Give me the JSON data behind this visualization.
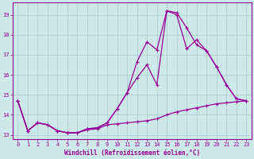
{
  "background_color": "#cce8e8",
  "line_color": "#990099",
  "grid_color": "#aacccc",
  "xlabel": "Windchill (Refroidissement éolien,°C)",
  "xlim": [
    -0.5,
    23.5
  ],
  "ylim": [
    12.8,
    19.6
  ],
  "yticks": [
    13,
    14,
    15,
    16,
    17,
    18,
    19
  ],
  "xticks": [
    0,
    1,
    2,
    3,
    4,
    5,
    6,
    7,
    8,
    9,
    10,
    11,
    12,
    13,
    14,
    15,
    16,
    17,
    18,
    19,
    20,
    21,
    22,
    23
  ],
  "series1_x": [
    0,
    1,
    2,
    3,
    4,
    5,
    6,
    7,
    8,
    9,
    10,
    11,
    12,
    13,
    14,
    15,
    16,
    17,
    18,
    19,
    20,
    21,
    22,
    23
  ],
  "series1_y": [
    14.7,
    13.2,
    13.6,
    13.5,
    13.2,
    13.1,
    13.1,
    13.3,
    13.35,
    13.6,
    14.3,
    15.1,
    15.85,
    16.5,
    15.5,
    19.2,
    19.1,
    18.35,
    17.5,
    17.2,
    16.4,
    15.5,
    14.8,
    14.7
  ],
  "series2_x": [
    0,
    1,
    2,
    3,
    4,
    5,
    6,
    7,
    8,
    9,
    10,
    11,
    12,
    13,
    14,
    15,
    16,
    17,
    18,
    19,
    20,
    21,
    22,
    23
  ],
  "series2_y": [
    14.7,
    13.2,
    13.6,
    13.5,
    13.2,
    13.1,
    13.1,
    13.3,
    13.35,
    13.6,
    14.3,
    15.1,
    16.65,
    17.65,
    17.25,
    19.2,
    19.0,
    17.3,
    17.75,
    17.2,
    16.4,
    15.5,
    14.8,
    14.7
  ],
  "series3_x": [
    0,
    1,
    2,
    3,
    4,
    5,
    6,
    7,
    8,
    9,
    10,
    11,
    12,
    13,
    14,
    15,
    16,
    17,
    18,
    19,
    20,
    21,
    22,
    23
  ],
  "series3_y": [
    14.7,
    13.2,
    13.6,
    13.5,
    13.2,
    13.1,
    13.1,
    13.25,
    13.3,
    13.5,
    13.55,
    13.6,
    13.65,
    13.7,
    13.8,
    14.0,
    14.15,
    14.25,
    14.35,
    14.45,
    14.55,
    14.6,
    14.65,
    14.7
  ]
}
